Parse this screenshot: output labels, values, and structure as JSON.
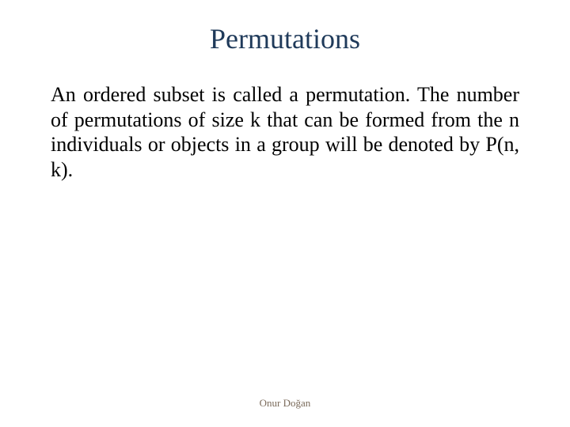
{
  "slide": {
    "title": "Permutations",
    "title_color": "#1f3a5a",
    "title_fontsize": 36,
    "body": "An ordered subset is called a permutation. The number of permutations of size k that can be formed from the n individuals or objects in a group will be denoted by P(n, k).",
    "body_fontsize": 26,
    "body_color": "#000000",
    "footer": "Onur Doğan",
    "footer_color": "#7a6a5a",
    "footer_fontsize": 13,
    "background_color": "#ffffff"
  }
}
